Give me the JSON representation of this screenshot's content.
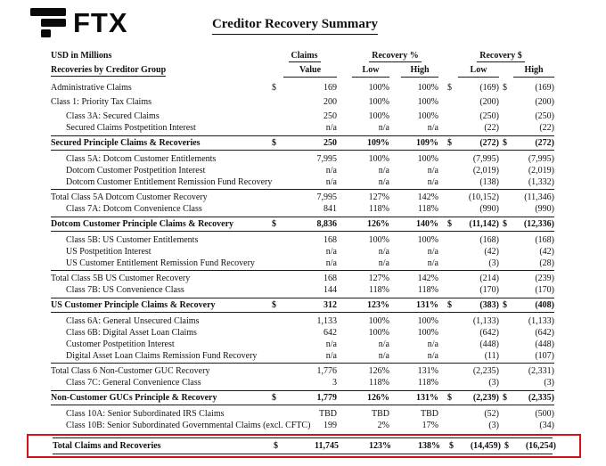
{
  "header": {
    "brand": "FTX",
    "title": "Creditor Recovery Summary"
  },
  "columns": {
    "units_label": "USD in Millions",
    "group_label": "Recoveries by Creditor Group",
    "claims_group": "Claims",
    "recovery_pct_group": "Recovery %",
    "recovery_usd_group": "Recovery $",
    "value": "Value",
    "low": "Low",
    "high": "High"
  },
  "colors": {
    "highlight_box": "#d0121b",
    "rule": "#1a1a1a",
    "text": "#111111"
  },
  "table": {
    "rows": [
      {
        "label": "Administrative Claims",
        "cls": "",
        "d1": "$",
        "value": "169",
        "pl": "100%",
        "ph": "100%",
        "d2": "$",
        "ul": "(169)",
        "d3": "$",
        "uh": "(169)"
      },
      {
        "label": "Class 1: Priority Tax Claims",
        "cls": "gap",
        "value": "200",
        "pl": "100%",
        "ph": "100%",
        "ul": "(200)",
        "uh": "(200)"
      },
      {
        "label": "Class 3A: Secured Claims",
        "cls": "indent gap",
        "value": "250",
        "pl": "100%",
        "ph": "100%",
        "ul": "(250)",
        "uh": "(250)"
      },
      {
        "label": "Secured Claims Postpetition Interest",
        "cls": "indent",
        "value": "n/a",
        "pl": "n/a",
        "ph": "n/a",
        "ul": "(22)",
        "uh": "(22)"
      },
      {
        "label": "Secured Principle Claims & Recoveries",
        "cls": "bold",
        "d1": "$",
        "value": "250",
        "pl": "109%",
        "ph": "109%",
        "d2": "$",
        "ul": "(272)",
        "d3": "$",
        "uh": "(272)"
      },
      {
        "label": "Class 5A: Dotcom Customer Entitlements",
        "cls": "indent gap",
        "value": "7,995",
        "pl": "100%",
        "ph": "100%",
        "ul": "(7,995)",
        "uh": "(7,995)"
      },
      {
        "label": "Dotcom Customer Postpetition Interest",
        "cls": "indent",
        "value": "n/a",
        "pl": "n/a",
        "ph": "n/a",
        "ul": "(2,019)",
        "uh": "(2,019)"
      },
      {
        "label": "Dotcom Customer Entitlement Remission Fund Recovery",
        "cls": "indent",
        "value": "n/a",
        "pl": "n/a",
        "ph": "n/a",
        "ul": "(138)",
        "uh": "(1,332)"
      },
      {
        "label": "Total Class 5A Dotcom Customer Recovery",
        "cls": "line",
        "value": "7,995",
        "pl": "127%",
        "ph": "142%",
        "ul": "(10,152)",
        "uh": "(11,346)"
      },
      {
        "label": "Class 7A: Dotcom Convenience Class",
        "cls": "indent",
        "value": "841",
        "pl": "118%",
        "ph": "118%",
        "ul": "(990)",
        "uh": "(990)"
      },
      {
        "label": "Dotcom Customer Principle Claims & Recovery",
        "cls": "bold",
        "d1": "$",
        "value": "8,836",
        "pl": "126%",
        "ph": "140%",
        "d2": "$",
        "ul": "(11,142)",
        "d3": "$",
        "uh": "(12,336)"
      },
      {
        "label": "Class 5B: US Customer Entitlements",
        "cls": "indent gap",
        "value": "168",
        "pl": "100%",
        "ph": "100%",
        "ul": "(168)",
        "uh": "(168)"
      },
      {
        "label": "US Postpetition Interest",
        "cls": "indent",
        "value": "n/a",
        "pl": "n/a",
        "ph": "n/a",
        "ul": "(42)",
        "uh": "(42)"
      },
      {
        "label": "US Customer Entitlement Remission Fund Recovery",
        "cls": "indent",
        "value": "n/a",
        "pl": "n/a",
        "ph": "n/a",
        "ul": "(3)",
        "uh": "(28)"
      },
      {
        "label": "Total Class 5B US Customer Recovery",
        "cls": "line",
        "value": "168",
        "pl": "127%",
        "ph": "142%",
        "ul": "(214)",
        "uh": "(239)"
      },
      {
        "label": "Class 7B: US Convenience Class",
        "cls": "indent",
        "value": "144",
        "pl": "118%",
        "ph": "118%",
        "ul": "(170)",
        "uh": "(170)"
      },
      {
        "label": "US Customer Principle Claims & Recovery",
        "cls": "bold",
        "d1": "$",
        "value": "312",
        "pl": "123%",
        "ph": "131%",
        "d2": "$",
        "ul": "(383)",
        "d3": "$",
        "uh": "(408)"
      },
      {
        "label": "Class 6A: General Unsecured Claims",
        "cls": "indent gap",
        "value": "1,133",
        "pl": "100%",
        "ph": "100%",
        "ul": "(1,133)",
        "uh": "(1,133)"
      },
      {
        "label": "Class 6B: Digital Asset Loan Claims",
        "cls": "indent",
        "value": "642",
        "pl": "100%",
        "ph": "100%",
        "ul": "(642)",
        "uh": "(642)"
      },
      {
        "label": "Customer Postpetition Interest",
        "cls": "indent",
        "value": "n/a",
        "pl": "n/a",
        "ph": "n/a",
        "ul": "(448)",
        "uh": "(448)"
      },
      {
        "label": "Digital Asset Loan Claims Remission Fund Recovery",
        "cls": "indent",
        "value": "n/a",
        "pl": "n/a",
        "ph": "n/a",
        "ul": "(11)",
        "uh": "(107)"
      },
      {
        "label": "Total Class 6 Non-Customer GUC Recovery",
        "cls": "line",
        "value": "1,776",
        "pl": "126%",
        "ph": "131%",
        "ul": "(2,235)",
        "uh": "(2,331)"
      },
      {
        "label": "Class 7C: General Convenience Class",
        "cls": "indent",
        "value": "3",
        "pl": "118%",
        "ph": "118%",
        "ul": "(3)",
        "uh": "(3)"
      },
      {
        "label": "Non-Customer GUCs Principle & Recovery",
        "cls": "bold",
        "d1": "$",
        "value": "1,779",
        "pl": "126%",
        "ph": "131%",
        "d2": "$",
        "ul": "(2,239)",
        "d3": "$",
        "uh": "(2,335)"
      },
      {
        "label": "Class 10A: Senior Subordinated IRS Claims",
        "cls": "indent gap",
        "value": "TBD",
        "pl": "TBD",
        "ph": "TBD",
        "ul": "(52)",
        "uh": "(500)"
      },
      {
        "label": "Class 10B: Senior Subordinated Governmental Claims (excl. CFTC)",
        "cls": "indent",
        "value": "199",
        "pl": "2%",
        "ph": "17%",
        "ul": "(3)",
        "uh": "(34)"
      },
      {
        "label": "Total Claims and Recoveries",
        "cls": "grand",
        "d1": "$",
        "value": "11,745",
        "pl": "123%",
        "ph": "138%",
        "d2": "$",
        "ul": "(14,459)",
        "d3": "$",
        "uh": "(16,254)"
      }
    ]
  }
}
